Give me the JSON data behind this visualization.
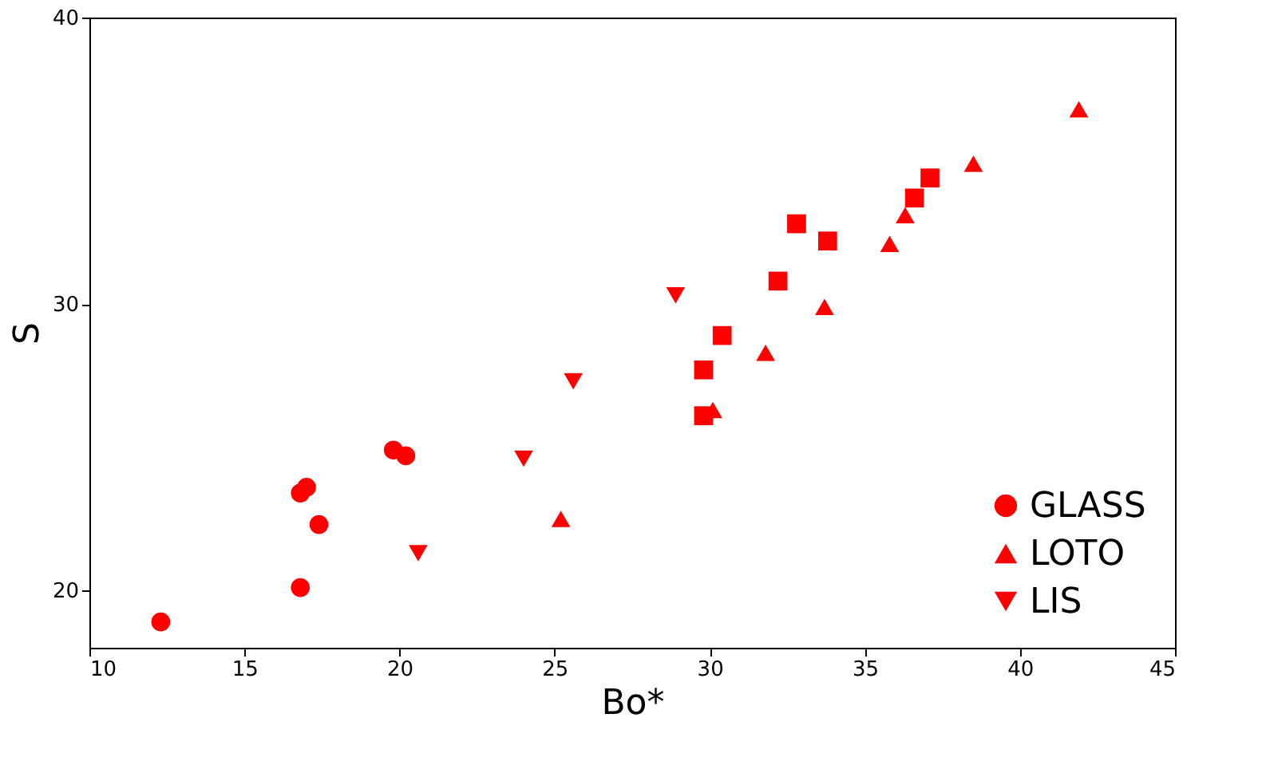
{
  "chart_data": {
    "type": "scatter",
    "xlabel": "Bo*",
    "ylabel": "S",
    "xlim": [
      10,
      45
    ],
    "ylim": [
      18,
      40
    ],
    "xticks": [
      10,
      15,
      20,
      25,
      30,
      35,
      40,
      45
    ],
    "yticks": [
      20,
      30,
      40
    ],
    "grid": false,
    "legend": "bottom right",
    "series": [
      {
        "name": "GLASS",
        "color": "#ff0000",
        "marker": "circle",
        "x": [
          12.3,
          16.8,
          17.0,
          17.4,
          16.8,
          19.8,
          20.2
        ],
        "values": [
          18.9,
          23.4,
          23.6,
          22.3,
          20.1,
          24.9,
          24.7
        ]
      },
      {
        "color": "#ff0000",
        "marker": "square",
        "x": [
          29.8,
          29.8,
          30.4,
          32.2,
          32.8,
          33.8,
          36.6,
          37.1
        ],
        "values": [
          26.1,
          27.7,
          28.9,
          30.8,
          32.8,
          32.2,
          33.7,
          34.4
        ]
      },
      {
        "name": "LOTO",
        "color": "#ff0000",
        "marker": "triangle",
        "x": [
          25.2,
          30.1,
          31.8,
          33.7,
          35.8,
          36.3,
          38.5,
          41.9
        ],
        "values": [
          22.5,
          26.3,
          28.3,
          29.9,
          32.1,
          33.1,
          34.9,
          36.8
        ]
      },
      {
        "name": "LIS",
        "color": "#ff0000",
        "marker": "triangle-down",
        "x": [
          20.6,
          24.0,
          25.6,
          28.9
        ],
        "values": [
          21.3,
          24.6,
          27.3,
          30.3
        ]
      }
    ]
  }
}
